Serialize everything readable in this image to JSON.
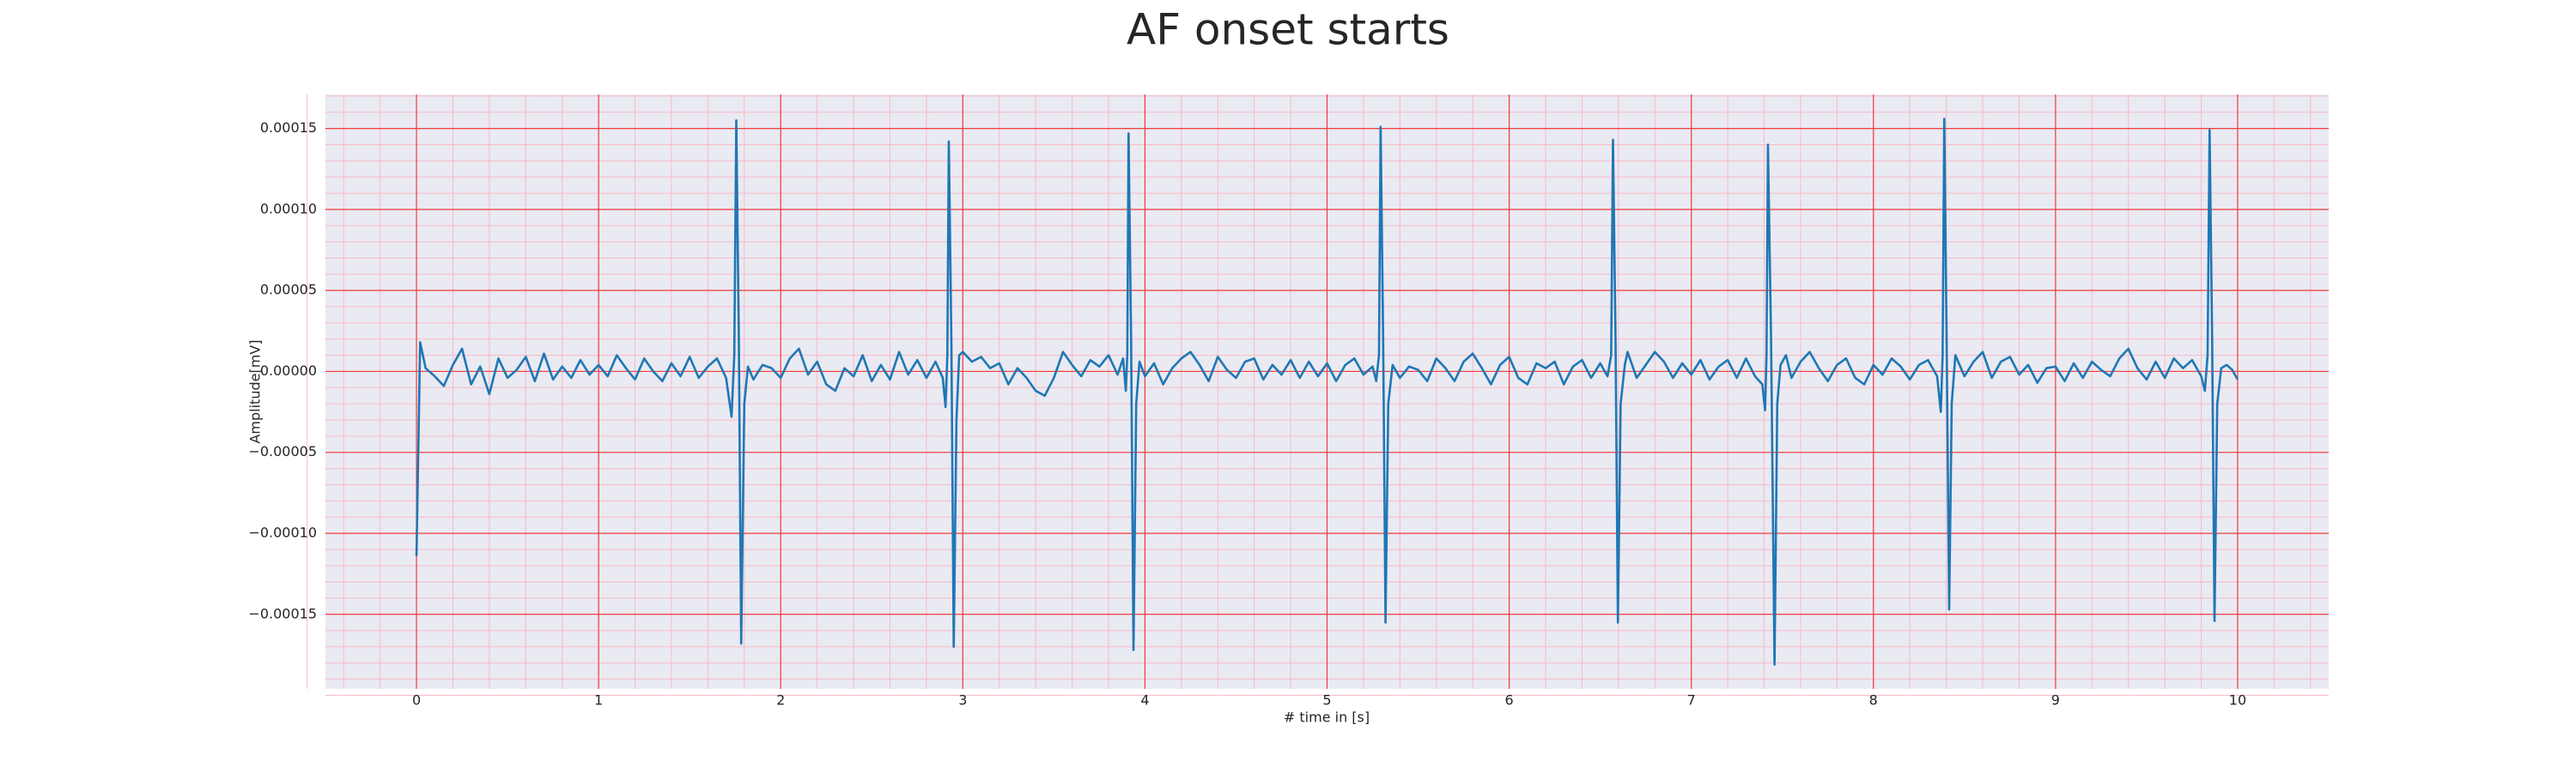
{
  "chart_data": {
    "type": "line",
    "title": "AF onset starts",
    "xlabel": "# time in [s]",
    "ylabel": "Amplitude[mV]",
    "color": "#1f77b4",
    "grid": true,
    "grid_color": "#f03c3c",
    "minor_grid": true,
    "minor_grid_color": "#f7b9c6",
    "xlim": [
      -0.5,
      10.5
    ],
    "ylim": [
      -0.000196,
      0.000171
    ],
    "xticks": [
      0,
      1,
      2,
      3,
      4,
      5,
      6,
      7,
      8,
      9,
      10
    ],
    "yticks": [
      {
        "value": -0.00015,
        "label": "−0.00015"
      },
      {
        "value": -0.0001,
        "label": "−0.00010"
      },
      {
        "value": -5e-05,
        "label": "−0.00005"
      },
      {
        "value": 0,
        "label": "0.00000"
      },
      {
        "value": 5e-05,
        "label": "0.00005"
      },
      {
        "value": 0.0001,
        "label": "0.00010"
      },
      {
        "value": 0.00015,
        "label": "0.00015"
      }
    ],
    "x": [
      0,
      0.02,
      0.05,
      0.1,
      0.15,
      0.2,
      0.25,
      0.3,
      0.35,
      0.4,
      0.45,
      0.5,
      0.55,
      0.6,
      0.65,
      0.7,
      0.75,
      0.8,
      0.85,
      0.9,
      0.95,
      1.0,
      1.05,
      1.1,
      1.15,
      1.2,
      1.25,
      1.3,
      1.35,
      1.4,
      1.45,
      1.5,
      1.55,
      1.6,
      1.65,
      1.7,
      1.73,
      1.745,
      1.756,
      1.77,
      1.783,
      1.8,
      1.82,
      1.85,
      1.9,
      1.95,
      2.0,
      2.05,
      2.1,
      2.15,
      2.2,
      2.25,
      2.3,
      2.35,
      2.4,
      2.45,
      2.5,
      2.55,
      2.6,
      2.65,
      2.7,
      2.75,
      2.8,
      2.85,
      2.89,
      2.905,
      2.915,
      2.923,
      2.937,
      2.95,
      2.965,
      2.98,
      3.0,
      3.05,
      3.1,
      3.15,
      3.2,
      3.25,
      3.3,
      3.35,
      3.4,
      3.45,
      3.5,
      3.55,
      3.6,
      3.65,
      3.7,
      3.75,
      3.8,
      3.85,
      3.88,
      3.895,
      3.903,
      3.91,
      3.924,
      3.937,
      3.952,
      3.97,
      4.0,
      4.05,
      4.1,
      4.15,
      4.2,
      4.25,
      4.3,
      4.35,
      4.4,
      4.45,
      4.5,
      4.55,
      4.6,
      4.65,
      4.7,
      4.75,
      4.8,
      4.85,
      4.9,
      4.95,
      5.0,
      5.05,
      5.1,
      5.15,
      5.2,
      5.25,
      5.27,
      5.285,
      5.294,
      5.308,
      5.321,
      5.336,
      5.36,
      5.4,
      5.45,
      5.5,
      5.55,
      5.6,
      5.65,
      5.7,
      5.75,
      5.8,
      5.85,
      5.9,
      5.95,
      6.0,
      6.05,
      6.1,
      6.15,
      6.2,
      6.25,
      6.3,
      6.35,
      6.4,
      6.45,
      6.5,
      6.54,
      6.56,
      6.57,
      6.584,
      6.597,
      6.612,
      6.635,
      6.65,
      6.7,
      6.75,
      6.8,
      6.85,
      6.9,
      6.95,
      7.0,
      7.05,
      7.1,
      7.15,
      7.2,
      7.25,
      7.3,
      7.35,
      7.39,
      7.405,
      7.413,
      7.421,
      7.438,
      7.457,
      7.472,
      7.49,
      7.52,
      7.55,
      7.6,
      7.65,
      7.7,
      7.75,
      7.8,
      7.85,
      7.9,
      7.95,
      8.0,
      8.05,
      8.1,
      8.15,
      8.2,
      8.25,
      8.3,
      8.35,
      8.37,
      8.38,
      8.389,
      8.402,
      8.416,
      8.43,
      8.45,
      8.5,
      8.55,
      8.6,
      8.65,
      8.7,
      8.75,
      8.8,
      8.85,
      8.9,
      8.95,
      9.0,
      9.05,
      9.1,
      9.15,
      9.2,
      9.25,
      9.3,
      9.35,
      9.4,
      9.45,
      9.5,
      9.55,
      9.6,
      9.65,
      9.7,
      9.75,
      9.8,
      9.82,
      9.835,
      9.846,
      9.86,
      9.873,
      9.888,
      9.91,
      9.94,
      9.97,
      10.0
    ],
    "values": [
      -0.000114,
      1.8e-05,
      2e-06,
      -3e-06,
      -9e-06,
      4e-06,
      1.4e-05,
      -8e-06,
      3e-06,
      -1.4e-05,
      8e-06,
      -4e-06,
      1e-06,
      9e-06,
      -6e-06,
      1.1e-05,
      -5e-06,
      3e-06,
      -4e-06,
      7e-06,
      -2e-06,
      4e-06,
      -3e-06,
      1e-05,
      2e-06,
      -5e-06,
      8e-06,
      0,
      -6e-06,
      5e-06,
      -3e-06,
      9e-06,
      -4e-06,
      3e-06,
      8e-06,
      -4e-06,
      -2.8e-05,
      1e-05,
      0.000155,
      2e-05,
      -0.000168,
      -2e-05,
      3e-06,
      -5e-06,
      4e-06,
      2e-06,
      -4e-06,
      8e-06,
      1.4e-05,
      -2e-06,
      6e-06,
      -8e-06,
      -1.2e-05,
      2e-06,
      -3e-06,
      1e-05,
      -6e-06,
      4e-06,
      -5e-06,
      1.2e-05,
      -2e-06,
      7e-06,
      -4e-06,
      6e-06,
      -4e-06,
      -2.2e-05,
      1e-05,
      0.000142,
      2e-05,
      -0.00017,
      -3e-05,
      1e-05,
      1.2e-05,
      6e-06,
      9e-06,
      2e-06,
      5e-06,
      -8e-06,
      2e-06,
      -4e-06,
      -1.2e-05,
      -1.5e-05,
      -4e-06,
      1.2e-05,
      4e-06,
      -3e-06,
      7e-06,
      3e-06,
      1e-05,
      -2e-06,
      8e-06,
      -1.2e-05,
      1e-05,
      0.000147,
      2e-05,
      -0.000172,
      -2e-05,
      6e-06,
      -3e-06,
      5e-06,
      -8e-06,
      2e-06,
      8e-06,
      1.2e-05,
      4e-06,
      -6e-06,
      9e-06,
      1e-06,
      -4e-06,
      6e-06,
      8e-06,
      -5e-06,
      4e-06,
      -2e-06,
      7e-06,
      -4e-06,
      6e-06,
      -3e-06,
      5e-06,
      -6e-06,
      4e-06,
      8e-06,
      -2e-06,
      3e-06,
      -6e-06,
      1e-05,
      0.000151,
      2e-05,
      -0.000155,
      -2e-05,
      4e-06,
      -4e-06,
      3e-06,
      1e-06,
      -6e-06,
      8e-06,
      2e-06,
      -6e-06,
      6e-06,
      1.1e-05,
      2e-06,
      -8e-06,
      4e-06,
      9e-06,
      -4e-06,
      -8e-06,
      5e-06,
      2e-06,
      6e-06,
      -8e-06,
      3e-06,
      7e-06,
      -4e-06,
      5e-06,
      -3e-06,
      1e-05,
      0.000143,
      2e-05,
      -0.000155,
      -2e-05,
      4e-06,
      1.2e-05,
      -4e-06,
      4e-06,
      1.2e-05,
      6e-06,
      -4e-06,
      5e-06,
      -2e-06,
      7e-06,
      -5e-06,
      3e-06,
      7e-06,
      -4e-06,
      8e-06,
      -3e-06,
      -8e-06,
      -2.4e-05,
      1e-05,
      0.00014,
      2e-05,
      -0.000181,
      -2e-05,
      4e-06,
      1e-05,
      -4e-06,
      6e-06,
      1.2e-05,
      2e-06,
      -6e-06,
      4e-06,
      8e-06,
      -4e-06,
      -8e-06,
      4e-06,
      -2e-06,
      8e-06,
      3e-06,
      -5e-06,
      4e-06,
      7e-06,
      -3e-06,
      -2.5e-05,
      1e-05,
      0.000156,
      2e-05,
      -0.000147,
      -2e-05,
      1e-05,
      -3e-06,
      6e-06,
      1.2e-05,
      -4e-06,
      6e-06,
      9e-06,
      -2e-06,
      4e-06,
      -7e-06,
      2e-06,
      3e-06,
      -6e-06,
      5e-06,
      -4e-06,
      6e-06,
      1e-06,
      -3e-06,
      8e-06,
      1.4e-05,
      2e-06,
      -5e-06,
      6e-06,
      -4e-06,
      8e-06,
      2e-06,
      7e-06,
      -3e-06,
      -1.2e-05,
      1e-05,
      0.000149,
      2e-05,
      -0.000154,
      -2e-05,
      2e-06,
      4e-06,
      1e-06,
      -5e-06
    ]
  }
}
